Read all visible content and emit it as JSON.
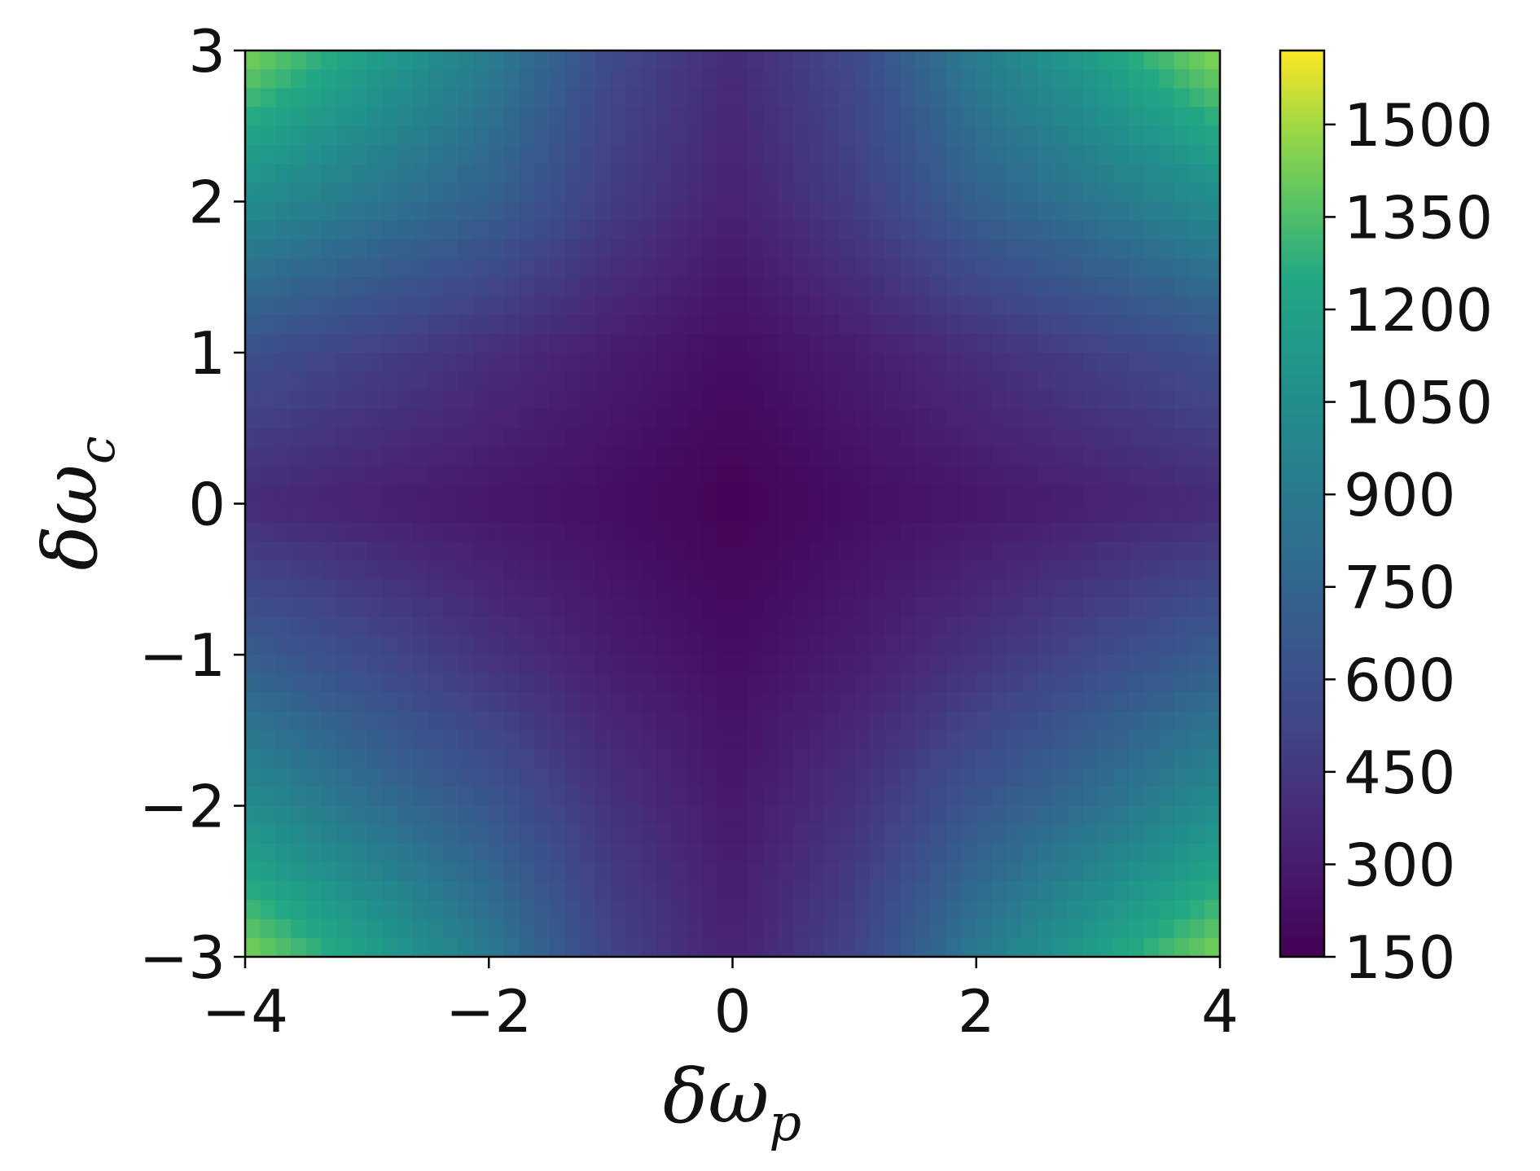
{
  "chart_data": {
    "type": "heatmap",
    "title": "",
    "xlabel": "δω_p",
    "ylabel": "δω_c",
    "xlim": [
      -4,
      4
    ],
    "ylim": [
      -3,
      3
    ],
    "x_ticks": [
      "−4",
      "−2",
      "0",
      "2",
      "4"
    ],
    "x_tick_values": [
      -4,
      -2,
      0,
      2,
      4
    ],
    "y_ticks": [
      "−3",
      "−2",
      "−1",
      "0",
      "1",
      "2",
      "3"
    ],
    "y_tick_values": [
      -3,
      -2,
      -1,
      0,
      1,
      2,
      3
    ],
    "colormap": "viridis",
    "colorbar": {
      "range": [
        150,
        1620
      ],
      "ticks": [
        "150",
        "300",
        "450",
        "600",
        "750",
        "900",
        "1050",
        "1200",
        "1350",
        "1500"
      ],
      "tick_values": [
        150,
        300,
        450,
        600,
        750,
        900,
        1050,
        1200,
        1350,
        1500
      ]
    },
    "grid": false,
    "data": {
      "x": [
        -4,
        -3,
        -2,
        -1,
        0,
        1,
        2,
        3,
        4
      ],
      "y": [
        -3,
        -2,
        -1,
        0,
        1,
        2,
        3
      ],
      "z": [
        [
          1450,
          1200,
          900,
          520,
          330,
          520,
          900,
          1200,
          1450
        ],
        [
          1050,
          830,
          650,
          420,
          280,
          420,
          650,
          830,
          1050
        ],
        [
          700,
          560,
          420,
          300,
          220,
          300,
          420,
          560,
          700
        ],
        [
          380,
          320,
          270,
          220,
          160,
          220,
          270,
          320,
          380
        ],
        [
          600,
          500,
          400,
          300,
          220,
          300,
          400,
          500,
          600
        ],
        [
          1050,
          880,
          720,
          480,
          330,
          480,
          720,
          880,
          1050
        ],
        [
          1450,
          1200,
          930,
          560,
          380,
          560,
          930,
          1200,
          1480
        ]
      ]
    }
  }
}
